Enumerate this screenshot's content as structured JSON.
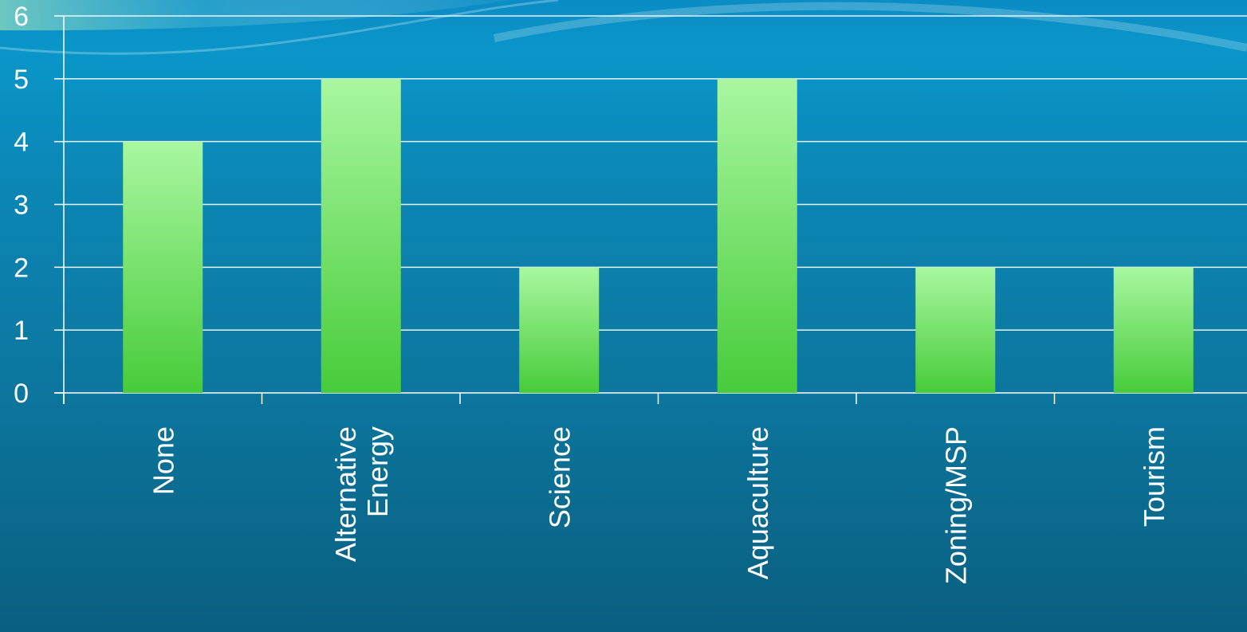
{
  "chart_data": {
    "type": "bar",
    "categories": [
      "None",
      "Alternative Energy",
      "Science",
      "Aquaculture",
      "Zoning/MSP",
      "Tourism"
    ],
    "category_lines": [
      [
        "None"
      ],
      [
        "Alternative",
        "Energy"
      ],
      [
        "Science"
      ],
      [
        "Aquaculture"
      ],
      [
        "Zoning/MSP"
      ],
      [
        "Tourism"
      ]
    ],
    "values": [
      4,
      5,
      2,
      5,
      2,
      2
    ],
    "yticks": [
      "0",
      "1",
      "2",
      "3",
      "4",
      "5",
      "6"
    ],
    "ylim": [
      0,
      6
    ],
    "grid": true,
    "colors": {
      "bar_top": "#a9f7a0",
      "bar_bottom": "#47cc3a",
      "grid": "#ffffff",
      "text": "#ffffff"
    }
  }
}
